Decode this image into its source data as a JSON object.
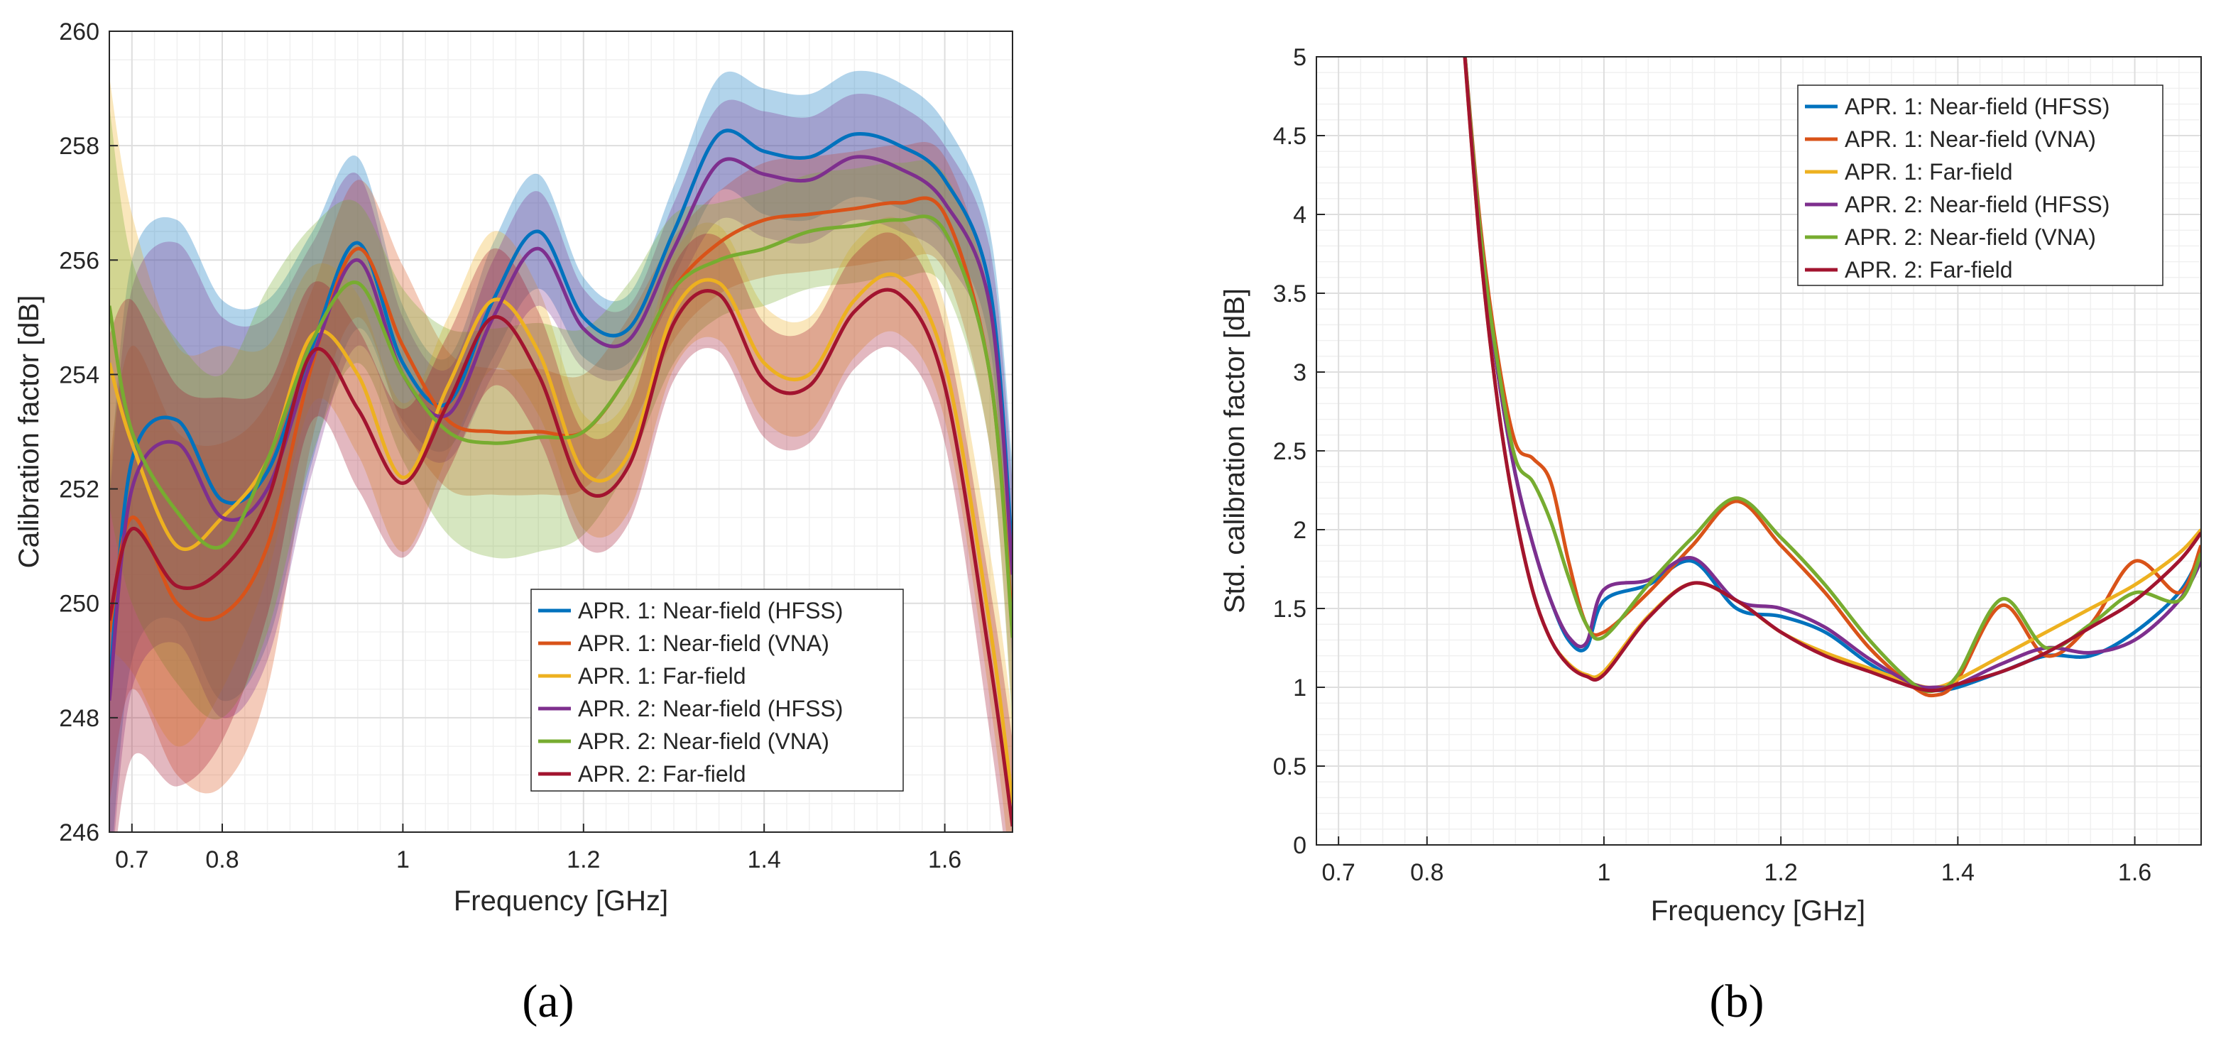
{
  "colors": {
    "apr1_hfss": "#0072BD",
    "apr1_vna": "#D95319",
    "apr1_far": "#EDB120",
    "apr2_hfss": "#7E2F8E",
    "apr2_vna": "#77AC30",
    "apr2_far": "#A2142F"
  },
  "chart_data": [
    {
      "panel_label": "(a)",
      "type": "line",
      "title": "",
      "xlabel": "Frequency [GHz]",
      "ylabel": "Calibration factor [dB]",
      "xlim": [
        0.675,
        1.675
      ],
      "ylim": [
        246,
        260
      ],
      "xticks": [
        0.7,
        0.8,
        1,
        1.2,
        1.4,
        1.6
      ],
      "xtick_labels": [
        "0.7",
        "0.8",
        "1",
        "1.2",
        "1.4",
        "1.6"
      ],
      "yticks": [
        246,
        248,
        250,
        252,
        254,
        256,
        258,
        260
      ],
      "ytick_labels": [
        "246",
        "248",
        "250",
        "252",
        "254",
        "256",
        "258",
        "260"
      ],
      "grid": true,
      "legend_position": "bottom-right",
      "x": [
        0.675,
        0.7,
        0.75,
        0.8,
        0.85,
        0.9,
        0.95,
        1.0,
        1.05,
        1.1,
        1.15,
        1.2,
        1.25,
        1.3,
        1.35,
        1.4,
        1.45,
        1.5,
        1.55,
        1.6,
        1.65,
        1.675
      ],
      "series": [
        {
          "name": "APR. 1: Near-field (HFSS)",
          "color_key": "apr1_hfss",
          "values": [
            248.5,
            252.5,
            253.2,
            251.8,
            252.3,
            254.5,
            256.3,
            254.2,
            253.5,
            255.3,
            256.5,
            255.0,
            254.8,
            256.5,
            258.2,
            257.9,
            257.8,
            258.2,
            258.0,
            257.4,
            255.5,
            250.8
          ],
          "band_half_width": [
            3.5,
            3.5,
            3.5,
            3.5,
            3.0,
            2.0,
            1.5,
            1.0,
            0.8,
            1.0,
            1.0,
            0.7,
            0.6,
            0.8,
            1.0,
            1.1,
            1.1,
            1.1,
            1.1,
            1.0,
            1.0,
            1.6
          ]
        },
        {
          "name": "APR. 1: Near-field (VNA)",
          "color_key": "apr1_vna",
          "values": [
            249.5,
            251.5,
            250.0,
            249.8,
            251.0,
            254.2,
            256.2,
            254.5,
            253.2,
            253.0,
            253.0,
            253.0,
            254.0,
            255.5,
            256.3,
            256.7,
            256.8,
            256.9,
            257.0,
            256.8,
            254.0,
            249.6
          ],
          "band_half_width": [
            3.0,
            3.0,
            3.0,
            3.0,
            2.5,
            1.3,
            1.2,
            1.4,
            1.2,
            1.1,
            1.1,
            1.0,
            1.0,
            0.9,
            0.9,
            1.0,
            1.0,
            1.0,
            1.0,
            1.0,
            1.3,
            1.6
          ]
        },
        {
          "name": "APR. 1: Far-field",
          "color_key": "apr1_far",
          "values": [
            254.2,
            252.8,
            251.0,
            251.5,
            252.5,
            254.7,
            254.0,
            252.2,
            253.8,
            255.3,
            254.4,
            252.3,
            252.6,
            255.1,
            255.6,
            254.2,
            254.0,
            255.3,
            255.7,
            254.2,
            249.6,
            246.5
          ],
          "band_half_width": [
            5.0,
            4.0,
            3.5,
            3.0,
            2.0,
            1.2,
            1.4,
            1.3,
            1.2,
            1.2,
            1.1,
            1.0,
            1.0,
            1.0,
            1.0,
            1.0,
            1.0,
            1.0,
            1.0,
            1.0,
            1.3,
            1.5
          ]
        },
        {
          "name": "APR. 2: Near-field (HFSS)",
          "color_key": "apr2_hfss",
          "values": [
            248.3,
            252.0,
            252.8,
            251.5,
            252.0,
            254.3,
            256.0,
            254.0,
            253.3,
            255.0,
            256.2,
            254.8,
            254.6,
            256.2,
            257.7,
            257.5,
            257.4,
            257.8,
            257.6,
            257.0,
            255.2,
            250.5
          ],
          "band_half_width": [
            3.5,
            3.5,
            3.5,
            3.5,
            3.0,
            2.0,
            1.5,
            1.0,
            0.8,
            1.0,
            1.0,
            0.7,
            0.6,
            0.8,
            1.0,
            1.1,
            1.1,
            1.1,
            1.1,
            1.0,
            1.0,
            1.6
          ]
        },
        {
          "name": "APR. 2: Near-field (VNA)",
          "color_key": "apr2_vna",
          "values": [
            255.2,
            253.0,
            251.6,
            251.0,
            252.5,
            254.6,
            255.6,
            254.0,
            253.0,
            252.8,
            252.9,
            253.0,
            254.0,
            255.5,
            256.0,
            256.2,
            256.5,
            256.6,
            256.7,
            256.5,
            254.0,
            249.4
          ],
          "band_half_width": [
            3.5,
            3.0,
            3.0,
            3.0,
            3.0,
            2.0,
            1.4,
            1.5,
            1.8,
            2.0,
            2.0,
            1.8,
            1.6,
            1.3,
            1.0,
            1.0,
            1.0,
            1.0,
            1.0,
            1.0,
            1.3,
            1.6
          ]
        },
        {
          "name": "APR. 2: Far-field",
          "color_key": "apr2_far",
          "values": [
            249.7,
            251.3,
            250.3,
            250.6,
            251.8,
            254.4,
            253.4,
            252.1,
            253.5,
            255.0,
            254.0,
            252.0,
            252.4,
            254.9,
            255.4,
            253.9,
            253.8,
            255.1,
            255.4,
            253.8,
            249.0,
            246.1
          ],
          "band_half_width": [
            5.0,
            4.0,
            3.5,
            3.0,
            2.0,
            1.2,
            1.4,
            1.3,
            1.2,
            1.2,
            1.1,
            1.0,
            1.0,
            1.0,
            1.0,
            1.0,
            1.0,
            1.0,
            1.0,
            1.0,
            1.3,
            1.5
          ]
        }
      ]
    },
    {
      "panel_label": "(b)",
      "type": "line",
      "title": "",
      "xlabel": "Frequency [GHz]",
      "ylabel": "Std. calibration factor [dB]",
      "xlim": [
        0.675,
        1.675
      ],
      "ylim": [
        0,
        5
      ],
      "xticks": [
        0.7,
        0.8,
        1,
        1.2,
        1.4,
        1.6
      ],
      "xtick_labels": [
        "0.7",
        "0.8",
        "1",
        "1.2",
        "1.4",
        "1.6"
      ],
      "yticks": [
        0,
        0.5,
        1,
        1.5,
        2,
        2.5,
        3,
        3.5,
        4,
        4.5,
        5
      ],
      "ytick_labels": [
        "0",
        "0.5",
        "1",
        "1.5",
        "2",
        "2.5",
        "3",
        "3.5",
        "4",
        "4.5",
        "5"
      ],
      "grid": true,
      "legend_position": "top-right",
      "x": [
        0.84,
        0.86,
        0.88,
        0.9,
        0.92,
        0.94,
        0.96,
        0.98,
        1.0,
        1.05,
        1.1,
        1.15,
        1.2,
        1.25,
        1.3,
        1.35,
        1.375,
        1.4,
        1.45,
        1.5,
        1.55,
        1.6,
        1.65,
        1.675
      ],
      "series": [
        {
          "name": "APR. 1: Near-field (HFSS)",
          "color_key": "apr1_hfss",
          "values": [
            5.2,
            3.9,
            3.0,
            2.35,
            1.9,
            1.55,
            1.3,
            1.25,
            1.55,
            1.65,
            1.8,
            1.5,
            1.45,
            1.35,
            1.15,
            1.0,
            0.98,
            1.0,
            1.1,
            1.2,
            1.2,
            1.35,
            1.6,
            1.85
          ]
        },
        {
          "name": "APR. 1: Near-field (VNA)",
          "color_key": "apr1_vna",
          "values": [
            5.2,
            3.95,
            3.1,
            2.55,
            2.45,
            2.3,
            1.8,
            1.4,
            1.35,
            1.6,
            1.9,
            2.18,
            1.9,
            1.6,
            1.25,
            1.0,
            0.95,
            1.05,
            1.52,
            1.2,
            1.4,
            1.8,
            1.6,
            1.9
          ]
        },
        {
          "name": "APR. 1: Far-field",
          "color_key": "apr1_far",
          "values": [
            5.2,
            3.8,
            2.8,
            2.1,
            1.6,
            1.3,
            1.15,
            1.08,
            1.1,
            1.45,
            1.66,
            1.55,
            1.35,
            1.22,
            1.12,
            1.02,
            1.0,
            1.05,
            1.2,
            1.35,
            1.5,
            1.65,
            1.85,
            2.0
          ]
        },
        {
          "name": "APR. 2: Near-field (HFSS)",
          "color_key": "apr2_hfss",
          "values": [
            5.2,
            3.9,
            3.0,
            2.35,
            1.9,
            1.55,
            1.32,
            1.28,
            1.62,
            1.68,
            1.82,
            1.55,
            1.5,
            1.38,
            1.18,
            1.02,
            1.0,
            1.02,
            1.15,
            1.25,
            1.22,
            1.3,
            1.55,
            1.8
          ]
        },
        {
          "name": "APR. 2: Near-field (VNA)",
          "color_key": "apr2_vna",
          "values": [
            5.2,
            3.9,
            3.05,
            2.45,
            2.3,
            2.05,
            1.7,
            1.4,
            1.32,
            1.65,
            1.95,
            2.2,
            1.95,
            1.65,
            1.3,
            1.02,
            0.98,
            1.08,
            1.56,
            1.25,
            1.4,
            1.6,
            1.55,
            1.85
          ]
        },
        {
          "name": "APR. 2: Far-field",
          "color_key": "apr2_far",
          "values": [
            5.2,
            3.8,
            2.8,
            2.1,
            1.6,
            1.3,
            1.14,
            1.07,
            1.08,
            1.44,
            1.66,
            1.55,
            1.35,
            1.2,
            1.1,
            1.0,
            0.98,
            1.02,
            1.1,
            1.22,
            1.38,
            1.55,
            1.8,
            1.98
          ]
        }
      ]
    }
  ]
}
